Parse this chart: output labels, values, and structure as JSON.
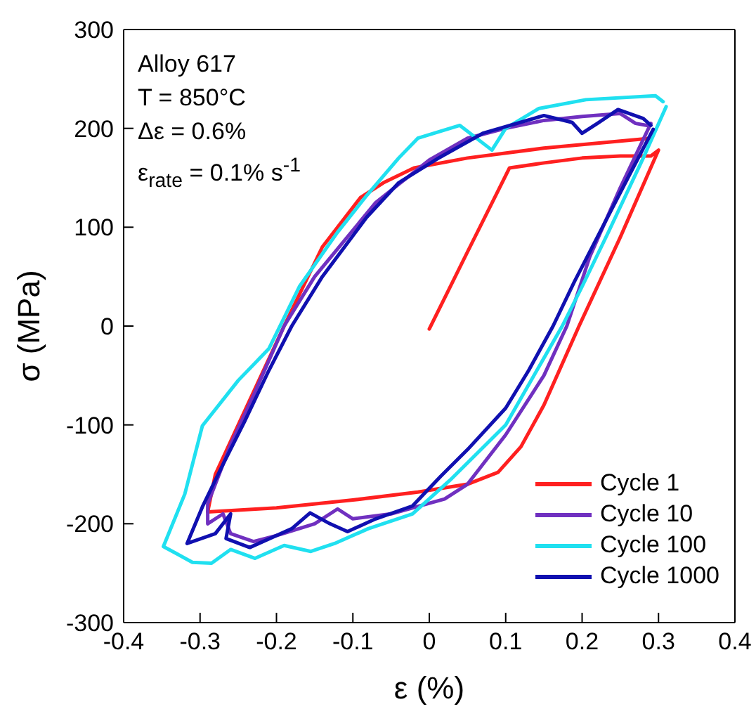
{
  "chart_data": {
    "type": "line",
    "xlabel": "ε (%)",
    "ylabel": "σ (MPa)",
    "xlim": [
      -0.4,
      0.4
    ],
    "xticks": [
      -0.4,
      -0.3,
      -0.2,
      -0.1,
      0,
      0.1,
      0.2,
      0.3,
      0.4
    ],
    "ylim": [
      -300,
      300
    ],
    "yticks": [
      -300,
      -200,
      -100,
      0,
      100,
      200,
      300
    ],
    "grid": false,
    "legend": "bottom right",
    "marker": "none",
    "line_style": "solid",
    "annotations": [
      "Alloy 617",
      "T = 850°C",
      "Δε = 0.6%",
      "ε$_{rate}$ = 0.1% s$^{-1}$"
    ],
    "series": [
      {
        "name": "Cycle 1",
        "color": "#ff2020",
        "x": [
          0,
          0.05,
          0.105,
          0.15,
          0.2,
          0.25,
          0.29,
          0.3,
          0.25,
          0.196,
          0.15,
          0.12,
          0.09,
          0.05,
          -0.015,
          -0.1,
          -0.2,
          -0.29,
          -0.28,
          -0.25,
          -0.19,
          -0.14,
          -0.09,
          -0.06,
          -0.02,
          0.05,
          0.15,
          0.29
        ],
        "values": [
          -3,
          75,
          160,
          165,
          170,
          172,
          172,
          178,
          90,
          0,
          -80,
          -122,
          -148,
          -160,
          -168,
          -176,
          -184,
          -188,
          -150,
          -100,
          0,
          80,
          130,
          145,
          160,
          170,
          180,
          190
        ]
      },
      {
        "name": "Cycle 10",
        "color": "#7030c0",
        "x": [
          0.29,
          0.25,
          0.21,
          0.18,
          0.15,
          0.1,
          0.05,
          0.02,
          -0.05,
          -0.1,
          -0.12,
          -0.15,
          -0.2,
          -0.23,
          -0.26,
          -0.27,
          -0.29,
          -0.29,
          -0.26,
          -0.23,
          -0.19,
          -0.15,
          -0.07,
          0,
          0.05,
          0.1,
          0.15,
          0.2,
          0.25,
          0.27,
          0.285
        ],
        "values": [
          205,
          140,
          70,
          0,
          -50,
          -110,
          -160,
          -175,
          -190,
          -195,
          -185,
          -200,
          -212,
          -218,
          -210,
          -190,
          -200,
          -180,
          -120,
          -70,
          0,
          50,
          125,
          168,
          190,
          200,
          208,
          212,
          215,
          205,
          203
        ]
      },
      {
        "name": "Cycle 100",
        "color": "#20e0f0",
        "x": [
          0.31,
          0.28,
          0.235,
          0.2,
          0.174,
          0.1,
          0.027,
          -0.022,
          -0.08,
          -0.124,
          -0.155,
          -0.19,
          -0.228,
          -0.26,
          -0.285,
          -0.31,
          -0.348,
          -0.32,
          -0.297,
          -0.25,
          -0.21,
          -0.17,
          -0.12,
          -0.082,
          -0.04,
          -0.015,
          0.04,
          0.082,
          0.1,
          0.143,
          0.205,
          0.296,
          0.306
        ],
        "values": [
          222,
          170,
          96,
          40,
          0,
          -100,
          -156,
          -190,
          -205,
          -220,
          -228,
          -222,
          -235,
          -226,
          -240,
          -239,
          -223,
          -170,
          -101,
          -55,
          -23,
          40,
          95,
          132,
          170,
          190,
          203,
          178,
          200,
          220,
          229,
          233,
          227
        ]
      },
      {
        "name": "Cycle 1000",
        "color": "#1010b0",
        "x": [
          0.293,
          0.26,
          0.224,
          0.19,
          0.162,
          0.13,
          0.1,
          0.05,
          0.015,
          -0.022,
          -0.07,
          -0.107,
          -0.13,
          -0.156,
          -0.18,
          -0.235,
          -0.266,
          -0.26,
          -0.28,
          -0.317,
          -0.297,
          -0.27,
          -0.242,
          -0.21,
          -0.18,
          -0.14,
          -0.082,
          -0.04,
          0.01,
          0.07,
          0.15,
          0.187,
          0.2,
          0.22,
          0.247,
          0.28,
          0.29
        ],
        "values": [
          199,
          150,
          96,
          45,
          0,
          -45,
          -83,
          -125,
          -152,
          -182,
          -195,
          -208,
          -200,
          -189,
          -205,
          -224,
          -215,
          -190,
          -210,
          -220,
          -183,
          -140,
          -97,
          -45,
          0,
          50,
          110,
          145,
          169,
          195,
          213,
          206,
          195,
          205,
          219,
          210,
          203
        ]
      }
    ]
  }
}
